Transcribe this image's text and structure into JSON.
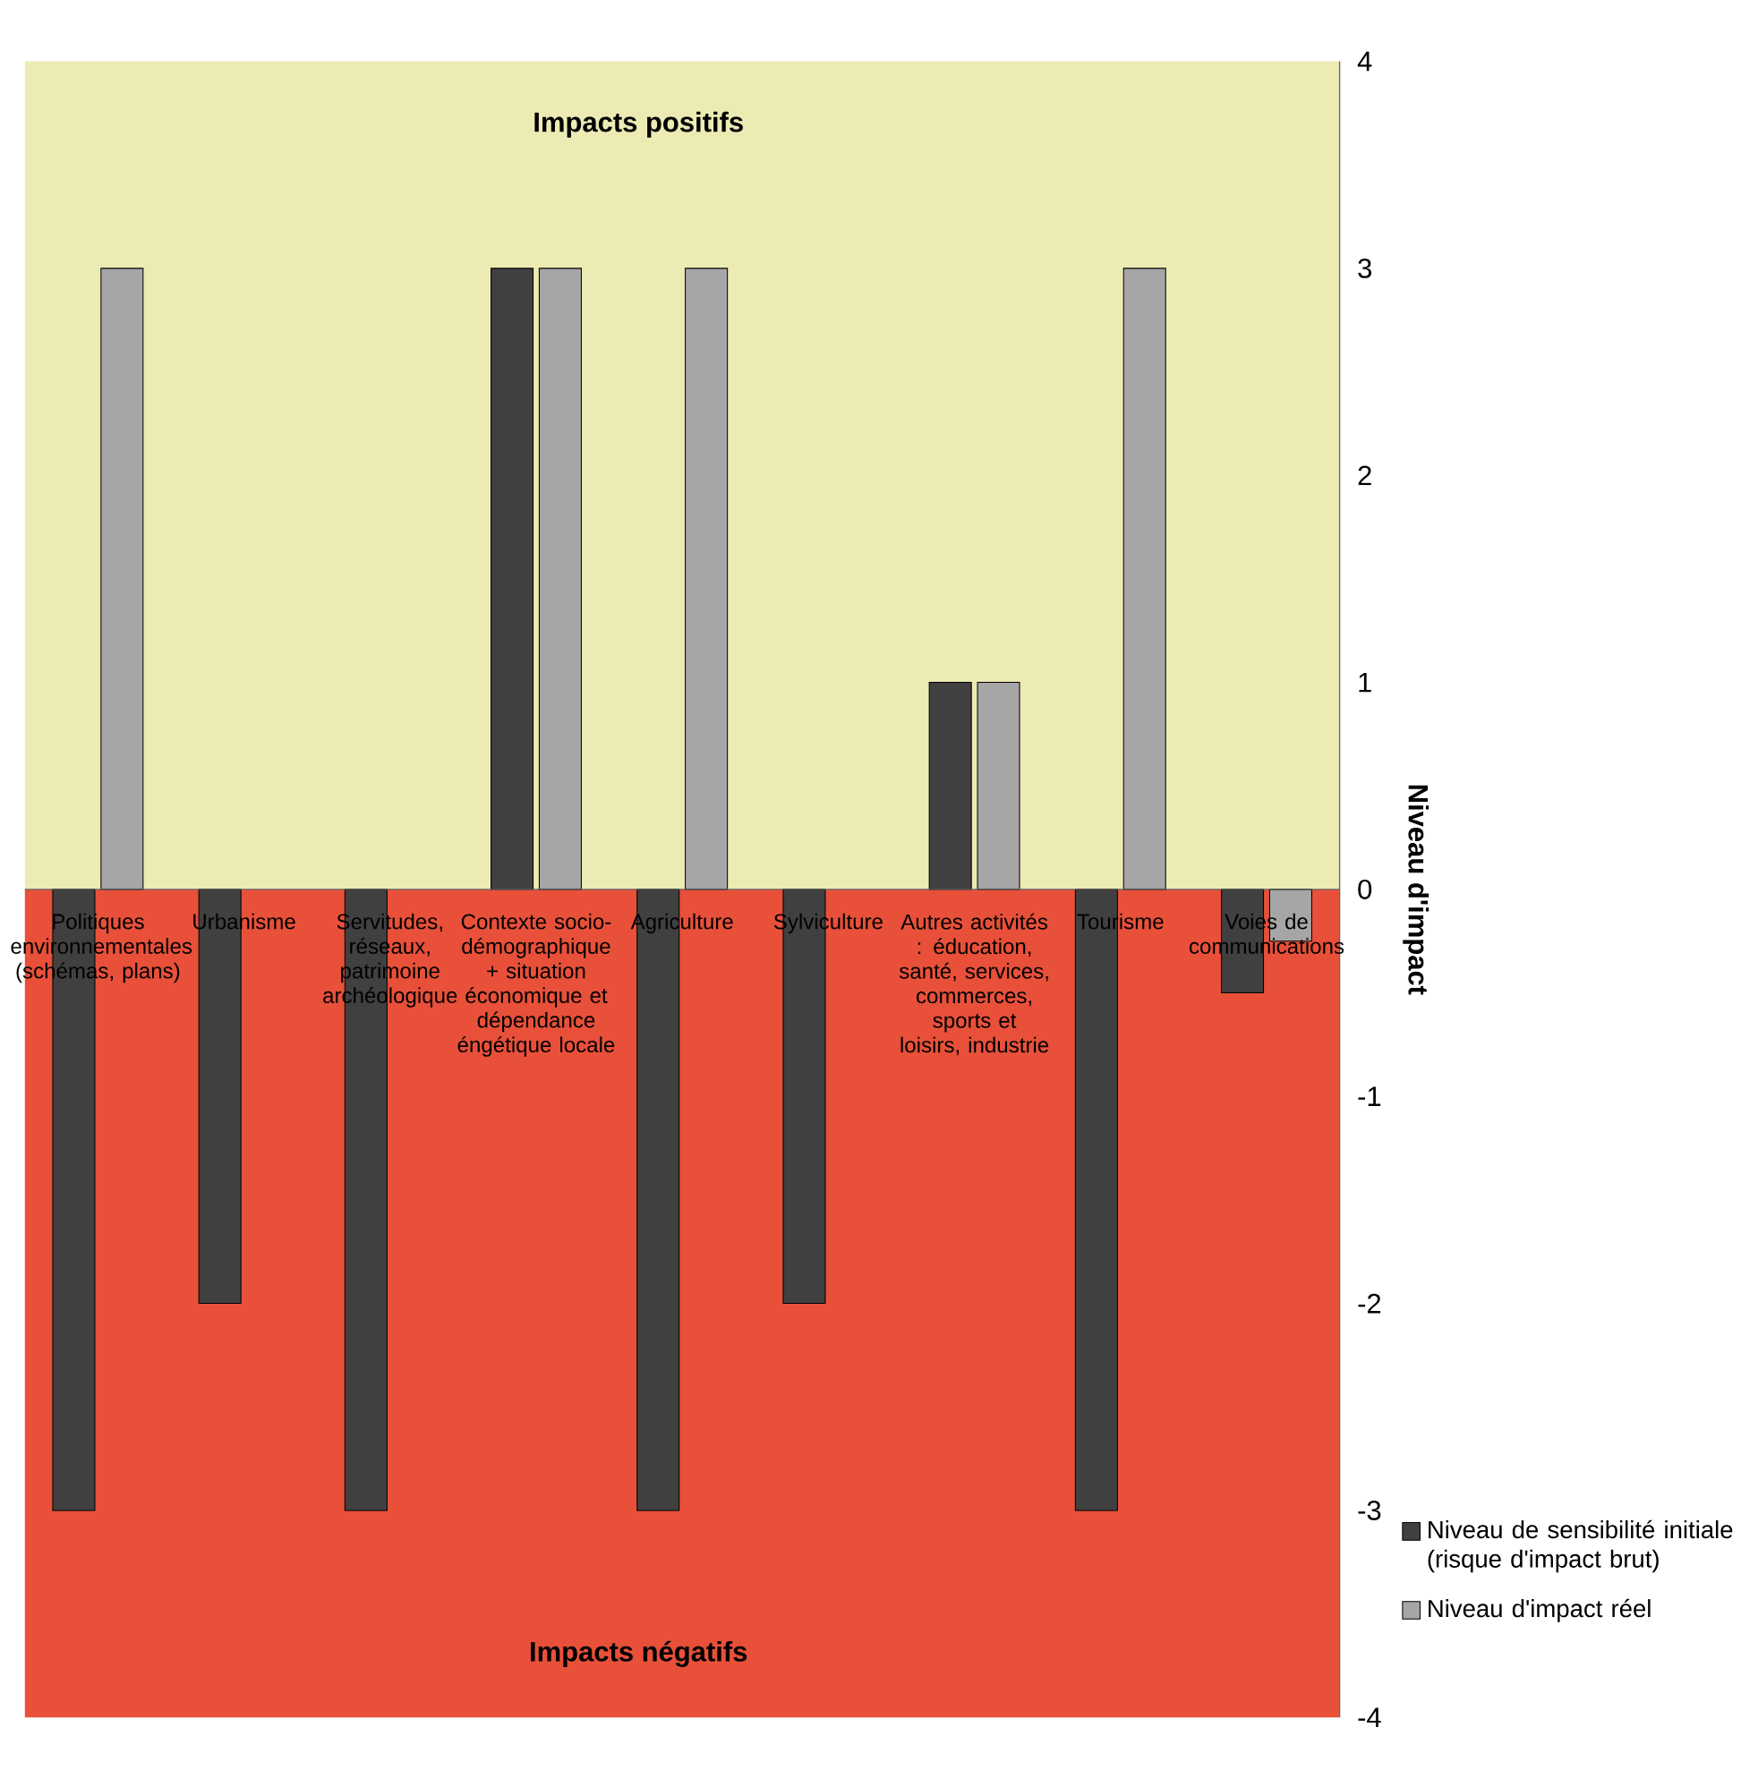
{
  "chart_data": {
    "type": "bar",
    "ylabel": "Niveau d'impact",
    "categories": [
      "Politiques environnementales (schémas, plans)",
      "Urbanisme",
      "Servitudes, réseaux, patrimoine archéologique",
      "Contexte socio-démographique + situation économique et dépendance éngétique locale",
      "Agriculture",
      "Sylviculture",
      "Autres activités : éducation, santé, services, commerces, sports et loisirs, industrie",
      "Tourisme",
      "Voies de communications"
    ],
    "series": [
      {
        "name": "Niveau de sensibilité initiale (risque d'impact brut)",
        "color": "#404040",
        "values": [
          -3,
          -2,
          -3,
          3,
          -3,
          -2,
          1,
          -3,
          -0.5
        ]
      },
      {
        "name": "Niveau d'impact réel",
        "color": "#a6a6a6",
        "values": [
          3,
          null,
          null,
          3,
          3,
          null,
          1,
          3,
          -0.25
        ]
      }
    ],
    "ylim": [
      -4,
      4
    ],
    "yticks": [
      -4,
      -3,
      -2,
      -1,
      0,
      1,
      2,
      3,
      4
    ],
    "bands": [
      {
        "axis": "y",
        "from": 0,
        "to": 4,
        "label": "Impacts positifs",
        "color": "#ecebb4"
      },
      {
        "axis": "y",
        "from": -4,
        "to": 0,
        "label": "Impacts négatifs",
        "color": "#e8503a"
      }
    ],
    "legend": "right",
    "grid": false
  }
}
